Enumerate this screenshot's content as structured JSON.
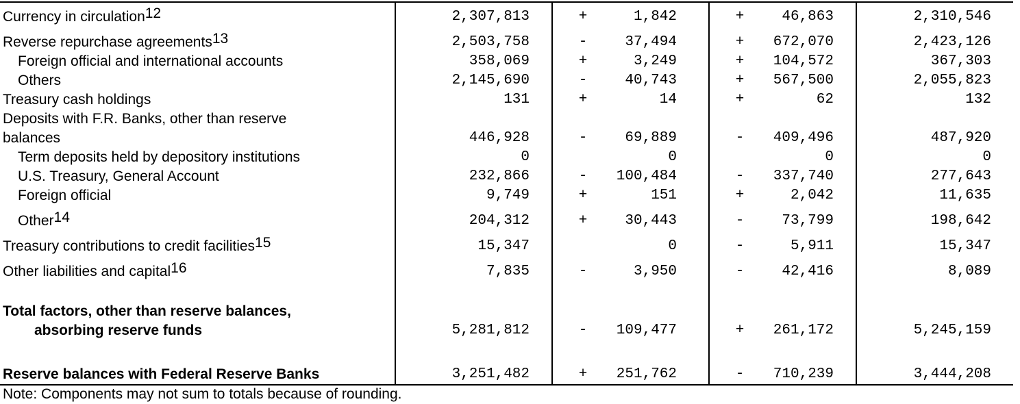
{
  "note": "Note: Components may not sum to totals because of rounding.",
  "rows": [
    {
      "label": "Currency in circulation",
      "sup": "12",
      "v1": "2,307,813",
      "s2": "+",
      "v2": "1,842",
      "s3": "+",
      "v3": "46,863",
      "v4": "2,310,546"
    },
    {
      "label": "Reverse repurchase agreements",
      "sup": "13",
      "v1": "2,503,758",
      "s2": "-",
      "v2": "37,494",
      "s3": "+",
      "v3": "672,070",
      "v4": "2,423,126"
    },
    {
      "label": "Foreign official and international accounts",
      "v1": "358,069",
      "s2": "+",
      "v2": "3,249",
      "s3": "+",
      "v3": "104,572",
      "v4": "367,303"
    },
    {
      "label": "Others",
      "v1": "2,145,690",
      "s2": "-",
      "v2": "40,743",
      "s3": "+",
      "v3": "567,500",
      "v4": "2,055,823"
    },
    {
      "label": "Treasury cash holdings",
      "v1": "131",
      "s2": "+",
      "v2": "14",
      "s3": "+",
      "v3": "62",
      "v4": "132"
    },
    {
      "label": "Deposits with F.R. Banks, other than reserve"
    },
    {
      "label": "balances",
      "v1": "446,928",
      "s2": "-",
      "v2": "69,889",
      "s3": "-",
      "v3": "409,496",
      "v4": "487,920"
    },
    {
      "label": "Term deposits held by depository institutions",
      "v1": "0",
      "v2": "0",
      "v3": "0",
      "v4": "0"
    },
    {
      "label": "U.S. Treasury, General Account",
      "v1": "232,866",
      "s2": "-",
      "v2": "100,484",
      "s3": "-",
      "v3": "337,740",
      "v4": "277,643"
    },
    {
      "label": "Foreign official",
      "v1": "9,749",
      "s2": "+",
      "v2": "151",
      "s3": "+",
      "v3": "2,042",
      "v4": "11,635"
    },
    {
      "label": "Other",
      "sup": "14",
      "v1": "204,312",
      "s2": "+",
      "v2": "30,443",
      "s3": "-",
      "v3": "73,799",
      "v4": "198,642"
    },
    {
      "label": "Treasury contributions to credit facilities",
      "sup": "15",
      "v1": "15,347",
      "v2": "0",
      "s3": "-",
      "v3": "5,911",
      "v4": "15,347"
    },
    {
      "label": "Other liabilities and capital",
      "sup": "16",
      "v1": "7,835",
      "s2": "-",
      "v2": "3,950",
      "s3": "-",
      "v3": "42,416",
      "v4": "8,089"
    },
    {
      "label": "Total factors, other than reserve balances,"
    },
    {
      "label": "absorbing reserve funds",
      "v1": "5,281,812",
      "s2": "-",
      "v2": "109,477",
      "s3": "+",
      "v3": "261,172",
      "v4": "5,245,159"
    },
    {
      "label": "Reserve balances with Federal Reserve Banks",
      "v1": "3,251,482",
      "s2": "+",
      "v2": "251,762",
      "s3": "-",
      "v3": "710,239",
      "v4": "3,444,208"
    }
  ]
}
